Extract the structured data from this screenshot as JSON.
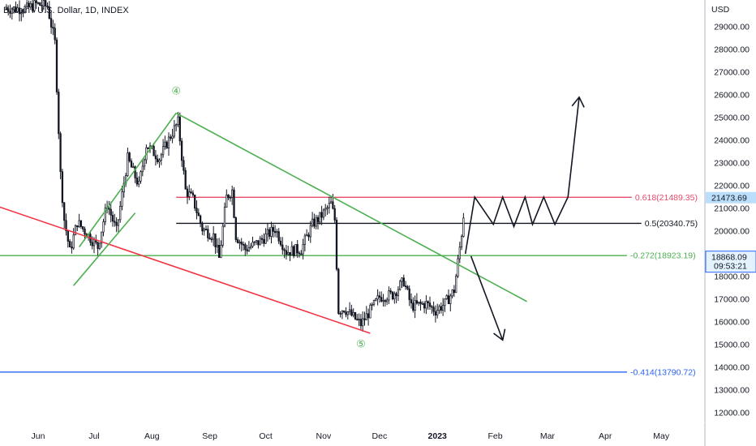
{
  "header": {
    "symbol_title": "Bitcoin / U.S. Dollar, 1D, INDEX"
  },
  "colors": {
    "candle": "#131722",
    "wedge_green": "#4caf50",
    "support_red": "#f23645",
    "resistance_pink": "#e84a6a",
    "fib_blue": "#2962ff",
    "grid_text": "#131722",
    "price_tag_blue": "#2962ff",
    "price_tag_light": "#bbdefb"
  },
  "chart_data": {
    "type": "candlestick",
    "y_axis": {
      "unit_label": "USD",
      "range": [
        11500,
        30200
      ],
      "ticks": [
        12000,
        13000,
        14000,
        15000,
        16000,
        17000,
        18000,
        19000,
        20000,
        21000,
        22000,
        23000,
        24000,
        25000,
        26000,
        27000,
        28000,
        29000
      ],
      "tick_labels": [
        "12000.00",
        "13000.00",
        "14000.00",
        "15000.00",
        "16000.00",
        "17000.00",
        "18000.00",
        "19000.00",
        "20000.00",
        "21000.00",
        "22000.00",
        "23000.00",
        "24000.00",
        "25000.00",
        "26000.00",
        "27000.00",
        "28000.00",
        "29000.00"
      ]
    },
    "x_axis": {
      "labels": [
        "Jun",
        "Jul",
        "Aug",
        "Sep",
        "Oct",
        "Nov",
        "Dec",
        "2023",
        "Feb",
        "Mar",
        "Apr",
        "May"
      ],
      "bold_label": "2023"
    },
    "price_path": [
      [
        "2022-05-26",
        29800
      ],
      [
        "2022-05-31",
        30000
      ],
      [
        "2022-06-06",
        29900
      ],
      [
        "2022-06-10",
        28300
      ],
      [
        "2022-06-13",
        22500
      ],
      [
        "2022-06-15",
        20500
      ],
      [
        "2022-06-18",
        19100
      ],
      [
        "2022-06-22",
        20400
      ],
      [
        "2022-06-28",
        19800
      ],
      [
        "2022-07-03",
        19300
      ],
      [
        "2022-07-08",
        21200
      ],
      [
        "2022-07-13",
        20000
      ],
      [
        "2022-07-19",
        23200
      ],
      [
        "2022-07-25",
        22000
      ],
      [
        "2022-07-29",
        23800
      ],
      [
        "2022-08-05",
        23200
      ],
      [
        "2022-08-11",
        24200
      ],
      [
        "2022-08-15",
        24800
      ],
      [
        "2022-08-19",
        21800
      ],
      [
        "2022-08-23",
        21400
      ],
      [
        "2022-08-28",
        20100
      ],
      [
        "2022-09-03",
        19800
      ],
      [
        "2022-09-06",
        18800
      ],
      [
        "2022-09-10",
        21500
      ],
      [
        "2022-09-13",
        21800
      ],
      [
        "2022-09-15",
        19800
      ],
      [
        "2022-09-20",
        19200
      ],
      [
        "2022-09-27",
        19500
      ],
      [
        "2022-10-06",
        20100
      ],
      [
        "2022-10-12",
        19100
      ],
      [
        "2022-10-20",
        19200
      ],
      [
        "2022-10-26",
        20300
      ],
      [
        "2022-10-30",
        20600
      ],
      [
        "2022-11-05",
        21200
      ],
      [
        "2022-11-07",
        20500
      ],
      [
        "2022-11-09",
        16500
      ],
      [
        "2022-11-12",
        16600
      ],
      [
        "2022-11-21",
        15900
      ],
      [
        "2022-11-26",
        16500
      ],
      [
        "2022-12-01",
        17100
      ],
      [
        "2022-12-08",
        17200
      ],
      [
        "2022-12-14",
        17800
      ],
      [
        "2022-12-18",
        16700
      ],
      [
        "2022-12-26",
        16800
      ],
      [
        "2022-12-31",
        16500
      ],
      [
        "2023-01-05",
        16800
      ],
      [
        "2023-01-10",
        17400
      ],
      [
        "2023-01-14",
        19900
      ],
      [
        "2023-01-15",
        20700
      ]
    ],
    "trendlines": [
      {
        "name": "upper-wedge",
        "color": "green",
        "from": [
          "2022-08-14",
          25200
        ],
        "to": [
          "2023-02-18",
          16900
        ]
      },
      {
        "name": "lower-support",
        "color": "red",
        "from": [
          "2022-04-15",
          21800
        ],
        "to": [
          "2022-11-26",
          15500
        ]
      },
      {
        "name": "flag-upper",
        "color": "green",
        "from": [
          "2022-06-23",
          19300
        ],
        "to": [
          "2022-08-14",
          25200
        ]
      },
      {
        "name": "flag-lower",
        "color": "green",
        "from": [
          "2022-06-20",
          17600
        ],
        "to": [
          "2022-07-23",
          20800
        ]
      }
    ],
    "horizontal_levels": [
      {
        "label": "0.618(21489.35)",
        "value": 21489.35,
        "color": "red",
        "start": "2022-08-14"
      },
      {
        "label": "0.5(20340.75)",
        "value": 20340.75,
        "color": "black",
        "start": "2022-08-14"
      },
      {
        "label": "-0.272(18923.19)",
        "value": 18923.19,
        "color": "green",
        "start": "2022-04-15"
      },
      {
        "label": "-0.414(13790.72)",
        "value": 13790.72,
        "color": "blue",
        "start": "2022-04-15"
      }
    ],
    "wave_labels": [
      {
        "label": "④",
        "date": "2022-08-14",
        "value": 26200
      },
      {
        "label": "⑤",
        "date": "2022-11-21",
        "value": 15050
      }
    ],
    "projections": [
      {
        "name": "bullish-scenario",
        "points": [
          [
            "2023-01-16",
            19000
          ],
          [
            "2023-01-21",
            21500
          ],
          [
            "2023-01-31",
            20300
          ],
          [
            "2023-02-05",
            21500
          ],
          [
            "2023-02-11",
            20200
          ],
          [
            "2023-02-17",
            21500
          ],
          [
            "2023-02-21",
            20300
          ],
          [
            "2023-02-27",
            21500
          ],
          [
            "2023-03-05",
            20300
          ],
          [
            "2023-03-12",
            21500
          ],
          [
            "2023-03-18",
            25900
          ]
        ]
      },
      {
        "name": "bearish-scenario",
        "points": [
          [
            "2023-01-19",
            18900
          ],
          [
            "2023-02-05",
            15200
          ]
        ]
      }
    ],
    "price_tags": [
      {
        "value": 21473.69,
        "label": "21473.69",
        "style": "light"
      },
      {
        "value": 18868.09,
        "label": "18868.09",
        "sublabel": "09:53:21",
        "style": "blue"
      }
    ]
  }
}
